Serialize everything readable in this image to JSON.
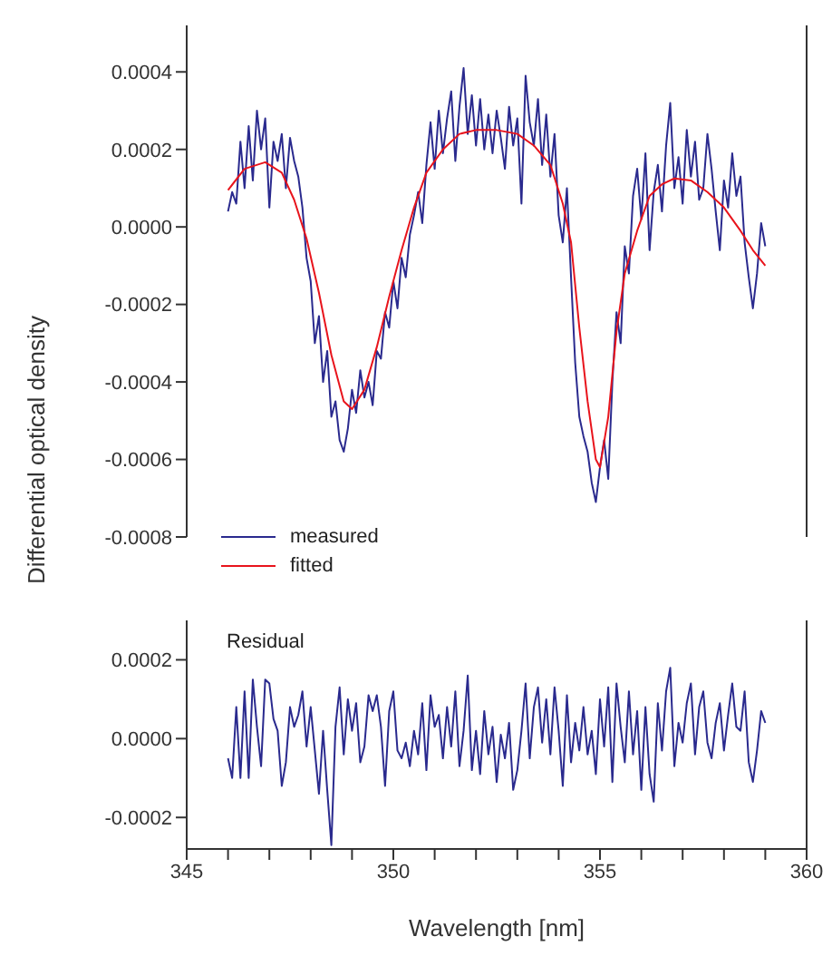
{
  "chart_data": [
    {
      "type": "line",
      "ylabel": "Differential optical density",
      "legend": "bottom left",
      "grid": false,
      "marker": "none",
      "line_style": "solid",
      "tick_labels": "y",
      "x": [
        346,
        346.1,
        346.2,
        346.3,
        346.4,
        346.5,
        346.6,
        346.7,
        346.8,
        346.9,
        347,
        347.1,
        347.2,
        347.3,
        347.4,
        347.5,
        347.6,
        347.7,
        347.8,
        347.9,
        348,
        348.1,
        348.2,
        348.3,
        348.4,
        348.5,
        348.6,
        348.7,
        348.8,
        348.9,
        349,
        349.1,
        349.2,
        349.3,
        349.4,
        349.5,
        349.6,
        349.7,
        349.8,
        349.9,
        350,
        350.1,
        350.2,
        350.3,
        350.4,
        350.5,
        350.6,
        350.7,
        350.8,
        350.9,
        351,
        351.1,
        351.2,
        351.3,
        351.4,
        351.5,
        351.6,
        351.7,
        351.8,
        351.9,
        352,
        352.1,
        352.2,
        352.3,
        352.4,
        352.5,
        352.6,
        352.7,
        352.8,
        352.9,
        353,
        353.1,
        353.2,
        353.3,
        353.4,
        353.5,
        353.6,
        353.7,
        353.8,
        353.9,
        354,
        354.1,
        354.2,
        354.3,
        354.4,
        354.5,
        354.6,
        354.7,
        354.8,
        354.9,
        355,
        355.1,
        355.2,
        355.3,
        355.4,
        355.5,
        355.6,
        355.7,
        355.8,
        355.9,
        356,
        356.1,
        356.2,
        356.3,
        356.4,
        356.5,
        356.6,
        356.7,
        356.8,
        356.9,
        357,
        357.1,
        357.2,
        357.3,
        357.4,
        357.5,
        357.6,
        357.7,
        357.8,
        357.9,
        358,
        358.1,
        358.2,
        358.3,
        358.4,
        358.5,
        358.6,
        358.7,
        358.8,
        358.9,
        359
      ],
      "xlim": [
        345,
        360
      ],
      "ylim": [
        -0.0008,
        0.00052
      ],
      "yticks": [
        -0.0008,
        -0.0006,
        -0.0004,
        -0.0002,
        {
          "value": 0,
          "label": "0.0000"
        },
        0.0002,
        0.0004
      ],
      "series": [
        {
          "name": "measured",
          "color": "#2a2a8e",
          "values": [
            4e-05,
            9e-05,
            6e-05,
            0.00022,
            0.0001,
            0.00026,
            0.00012,
            0.0003,
            0.0002,
            0.00028,
            5e-05,
            0.00022,
            0.00017,
            0.00024,
            0.0001,
            0.00023,
            0.00017,
            0.00013,
            5e-05,
            -8e-05,
            -0.00014,
            -0.0003,
            -0.00023,
            -0.0004,
            -0.00032,
            -0.00049,
            -0.00045,
            -0.00055,
            -0.00058,
            -0.00052,
            -0.00042,
            -0.00048,
            -0.00037,
            -0.00044,
            -0.0004,
            -0.00046,
            -0.00032,
            -0.00034,
            -0.00022,
            -0.00026,
            -0.00014,
            -0.00021,
            -8e-05,
            -0.00013,
            -2e-05,
            3e-05,
            9e-05,
            1e-05,
            0.00016,
            0.00027,
            0.00015,
            0.0003,
            0.00019,
            0.00028,
            0.00035,
            0.00017,
            0.00031,
            0.00041,
            0.00024,
            0.00034,
            0.00021,
            0.00033,
            0.0002,
            0.00029,
            0.00019,
            0.0003,
            0.00023,
            0.00015,
            0.00031,
            0.00021,
            0.00028,
            6e-05,
            0.00039,
            0.00027,
            0.00021,
            0.00033,
            0.00016,
            0.00029,
            0.00013,
            0.00024,
            3e-05,
            -4e-05,
            0.0001,
            -0.00013,
            -0.00035,
            -0.00049,
            -0.00054,
            -0.00058,
            -0.00066,
            -0.00071,
            -0.00062,
            -0.00055,
            -0.00065,
            -0.0004,
            -0.00022,
            -0.0003,
            -5e-05,
            -0.00012,
            8e-05,
            0.00015,
            2e-05,
            0.00019,
            -6e-05,
            9e-05,
            0.00016,
            4e-05,
            0.00021,
            0.00032,
            0.0001,
            0.00018,
            6e-05,
            0.00025,
            0.00013,
            0.00022,
            7e-05,
            0.0001,
            0.00024,
            0.00015,
            4e-05,
            -6e-05,
            0.00012,
            5e-05,
            0.00019,
            8e-05,
            0.00013,
            -4e-05,
            -0.00013,
            -0.00021,
            -0.00012,
            1e-05,
            -5e-05
          ]
        },
        {
          "name": "fitted",
          "color": "#e8141c",
          "x": [
            346,
            346.4,
            346.9,
            347.3,
            347.6,
            347.9,
            348.2,
            348.5,
            348.8,
            349,
            349.3,
            349.6,
            349.9,
            350.2,
            350.5,
            350.8,
            351.2,
            351.6,
            352,
            352.5,
            353,
            353.4,
            353.8,
            354.1,
            354.3,
            354.5,
            354.7,
            354.9,
            355,
            355.2,
            355.4,
            355.6,
            355.9,
            356.2,
            356.5,
            356.8,
            357.2,
            357.6,
            358,
            358.4,
            358.7,
            359
          ],
          "values": [
            9.5e-05,
            0.00015,
            0.000167,
            0.00014,
            7e-05,
            -3e-05,
            -0.00017,
            -0.00033,
            -0.00045,
            -0.00047,
            -0.00042,
            -0.00031,
            -0.00018,
            -6e-05,
            5e-05,
            0.00014,
            0.0002,
            0.00024,
            0.00025,
            0.00025,
            0.00024,
            0.00021,
            0.00016,
            6e-05,
            -4e-05,
            -0.00026,
            -0.00045,
            -0.0006,
            -0.00062,
            -0.00049,
            -0.00027,
            -0.00012,
            -1e-05,
            8e-05,
            0.00011,
            0.000125,
            0.00012,
            9e-05,
            5e-05,
            -1e-05,
            -6e-05,
            -0.0001
          ]
        }
      ]
    },
    {
      "type": "line",
      "xlabel": "Wavelength [nm]",
      "grid": false,
      "marker": "none",
      "line_style": "solid",
      "annotations": [
        "Residual"
      ],
      "x": [
        346,
        346.1,
        346.2,
        346.3,
        346.4,
        346.5,
        346.6,
        346.7,
        346.8,
        346.9,
        347,
        347.1,
        347.2,
        347.3,
        347.4,
        347.5,
        347.6,
        347.7,
        347.8,
        347.9,
        348,
        348.1,
        348.2,
        348.3,
        348.4,
        348.5,
        348.6,
        348.7,
        348.8,
        348.9,
        349,
        349.1,
        349.2,
        349.3,
        349.4,
        349.5,
        349.6,
        349.7,
        349.8,
        349.9,
        350,
        350.1,
        350.2,
        350.3,
        350.4,
        350.5,
        350.6,
        350.7,
        350.8,
        350.9,
        351,
        351.1,
        351.2,
        351.3,
        351.4,
        351.5,
        351.6,
        351.7,
        351.8,
        351.9,
        352,
        352.1,
        352.2,
        352.3,
        352.4,
        352.5,
        352.6,
        352.7,
        352.8,
        352.9,
        353,
        353.1,
        353.2,
        353.3,
        353.4,
        353.5,
        353.6,
        353.7,
        353.8,
        353.9,
        354,
        354.1,
        354.2,
        354.3,
        354.4,
        354.5,
        354.6,
        354.7,
        354.8,
        354.9,
        355,
        355.1,
        355.2,
        355.3,
        355.4,
        355.5,
        355.6,
        355.7,
        355.8,
        355.9,
        356,
        356.1,
        356.2,
        356.3,
        356.4,
        356.5,
        356.6,
        356.7,
        356.8,
        356.9,
        357,
        357.1,
        357.2,
        357.3,
        357.4,
        357.5,
        357.6,
        357.7,
        357.8,
        357.9,
        358,
        358.1,
        358.2,
        358.3,
        358.4,
        358.5,
        358.6,
        358.7,
        358.8,
        358.9,
        359
      ],
      "xlim": [
        345,
        360
      ],
      "xticks": [
        345,
        {
          "value": 346,
          "label": null
        },
        {
          "value": 347,
          "label": null
        },
        {
          "value": 348,
          "label": null
        },
        {
          "value": 349,
          "label": null
        },
        350,
        {
          "value": 351,
          "label": null
        },
        {
          "value": 352,
          "label": null
        },
        {
          "value": 353,
          "label": null
        },
        {
          "value": 354,
          "label": null
        },
        355,
        {
          "value": 356,
          "label": null
        },
        {
          "value": 357,
          "label": null
        },
        {
          "value": 358,
          "label": null
        },
        {
          "value": 359,
          "label": null
        },
        360
      ],
      "ylim": [
        -0.00028,
        0.0003
      ],
      "yticks": [
        -0.0002,
        {
          "value": 0,
          "label": "0.0000"
        },
        0.0002
      ],
      "series": [
        {
          "color": "#2a2a8e",
          "values": [
            -5e-05,
            -0.0001,
            8e-05,
            -0.0001,
            0.00012,
            -0.0001,
            0.00015,
            3e-05,
            -7e-05,
            0.00015,
            0.00014,
            5e-05,
            2e-05,
            -0.00012,
            -6e-05,
            8e-05,
            3e-05,
            6e-05,
            0.00012,
            -2e-05,
            8e-05,
            -3e-05,
            -0.00014,
            2e-05,
            -0.00013,
            -0.00027,
            3e-05,
            0.00013,
            -4e-05,
            0.0001,
            2e-05,
            9e-05,
            -6e-05,
            -2e-05,
            0.00011,
            7e-05,
            0.00011,
            3e-05,
            -0.00012,
            7e-05,
            0.00012,
            -3e-05,
            -5e-05,
            -1e-05,
            -7e-05,
            2e-05,
            -4e-05,
            9e-05,
            -8e-05,
            0.00011,
            3e-05,
            6e-05,
            -5e-05,
            8e-05,
            -2e-05,
            0.00012,
            -7e-05,
            2e-05,
            0.00016,
            -8e-05,
            2e-05,
            -9e-05,
            7e-05,
            -4e-05,
            3e-05,
            -0.00011,
            1e-05,
            -5e-05,
            4e-05,
            -0.00013,
            -8e-05,
            2e-05,
            0.00014,
            -5e-05,
            8e-05,
            0.00013,
            -1e-05,
            0.0001,
            -4e-05,
            0.00013,
            2e-05,
            -0.00012,
            0.00011,
            -6e-05,
            4e-05,
            -3e-05,
            8e-05,
            -4e-05,
            2e-05,
            -9e-05,
            0.0001,
            -2e-05,
            0.00013,
            -0.00011,
            0.00014,
            3e-05,
            -6e-05,
            0.00012,
            -4e-05,
            7e-05,
            -0.00013,
            8e-05,
            -9e-05,
            -0.00016,
            9e-05,
            -3e-05,
            0.00012,
            0.00018,
            -7e-05,
            4e-05,
            -1e-05,
            9e-05,
            0.00014,
            -4e-05,
            8e-05,
            0.00012,
            -1e-05,
            -5e-05,
            4e-05,
            9e-05,
            -3e-05,
            6e-05,
            0.00014,
            3e-05,
            2e-05,
            0.00012,
            -6e-05,
            -0.00011,
            -3e-05,
            7e-05,
            4e-05
          ]
        }
      ]
    }
  ]
}
